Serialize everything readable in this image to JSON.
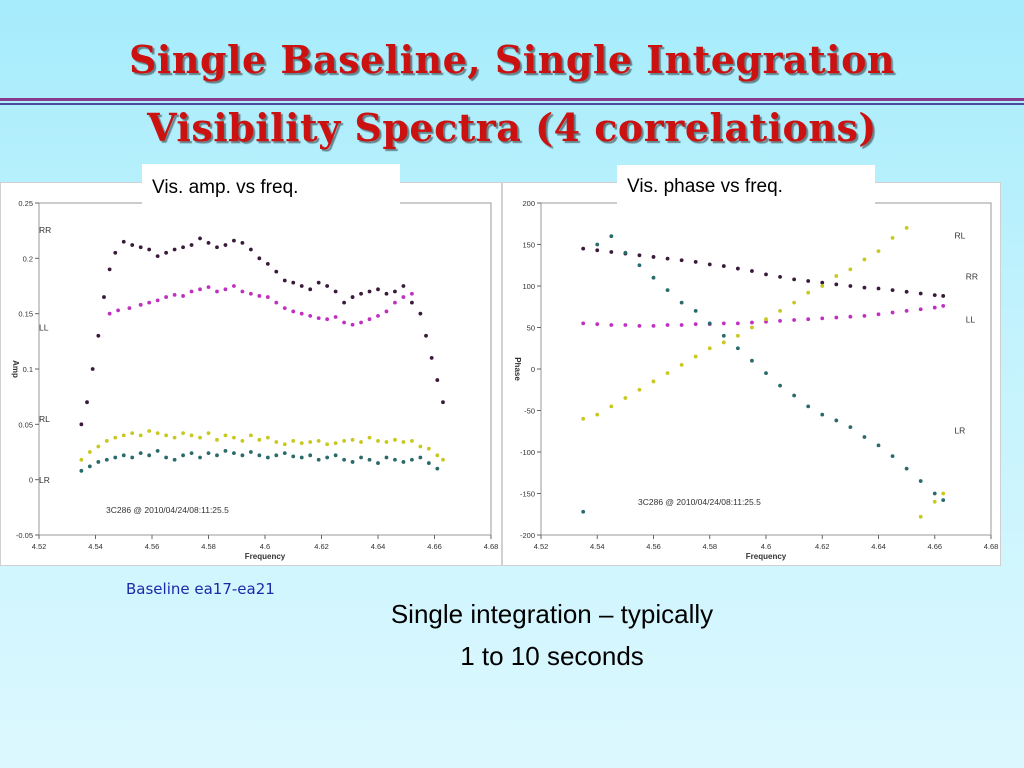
{
  "slide": {
    "title_line1": "Single Baseline, Single Integration",
    "title_line2": "Visibility Spectra (4 correlations)",
    "callout_amp": "Vis. amp. vs freq.",
    "callout_phase": "Vis. phase vs freq.",
    "baseline_label": "Baseline ea17-ea21",
    "note_line1": "Single integration – typically",
    "note_line2": "1 to 10 seconds",
    "colors": {
      "title": "#cc1111",
      "baseline": "#1a2aa8"
    }
  },
  "chart_data": [
    {
      "type": "scatter",
      "xlabel": "Frequency",
      "ylabel": "Amp",
      "xlim": [
        4.52,
        4.68
      ],
      "ylim": [
        -0.05,
        0.25
      ],
      "xticks": [
        "4.52",
        "4.54",
        "4.56",
        "4.58",
        "4.6",
        "4.62",
        "4.64",
        "4.66",
        "4.68"
      ],
      "yticks": [
        "-0.05",
        "0",
        "0.05",
        "0.1",
        "0.15",
        "0.2",
        "0.25"
      ],
      "annotation": "3C286 @ 2010/04/24/08:11:25.5",
      "series": [
        {
          "name": "RR",
          "color": "#3a1a3a",
          "label_at": [
            4.52,
            0.223
          ],
          "x": [
            4.535,
            4.537,
            4.539,
            4.541,
            4.543,
            4.545,
            4.547,
            4.55,
            4.553,
            4.556,
            4.559,
            4.562,
            4.565,
            4.568,
            4.571,
            4.574,
            4.577,
            4.58,
            4.583,
            4.586,
            4.589,
            4.592,
            4.595,
            4.598,
            4.601,
            4.604,
            4.607,
            4.61,
            4.613,
            4.616,
            4.619,
            4.622,
            4.625,
            4.628,
            4.631,
            4.634,
            4.637,
            4.64,
            4.643,
            4.646,
            4.649,
            4.652,
            4.655,
            4.657,
            4.659,
            4.661,
            4.663
          ],
          "y": [
            0.05,
            0.07,
            0.1,
            0.13,
            0.165,
            0.19,
            0.205,
            0.215,
            0.212,
            0.21,
            0.208,
            0.202,
            0.205,
            0.208,
            0.21,
            0.212,
            0.218,
            0.214,
            0.21,
            0.212,
            0.216,
            0.214,
            0.208,
            0.2,
            0.195,
            0.188,
            0.18,
            0.178,
            0.175,
            0.172,
            0.178,
            0.175,
            0.17,
            0.16,
            0.165,
            0.168,
            0.17,
            0.172,
            0.168,
            0.17,
            0.175,
            0.16,
            0.15,
            0.13,
            0.11,
            0.09,
            0.07
          ]
        },
        {
          "name": "LL",
          "color": "#c030c0",
          "label_at": [
            4.52,
            0.135
          ],
          "x": [
            4.545,
            4.548,
            4.552,
            4.556,
            4.559,
            4.562,
            4.565,
            4.568,
            4.571,
            4.574,
            4.577,
            4.58,
            4.583,
            4.586,
            4.589,
            4.592,
            4.595,
            4.598,
            4.601,
            4.604,
            4.607,
            4.61,
            4.613,
            4.616,
            4.619,
            4.622,
            4.625,
            4.628,
            4.631,
            4.634,
            4.637,
            4.64,
            4.643,
            4.646,
            4.649,
            4.652
          ],
          "y": [
            0.15,
            0.153,
            0.155,
            0.158,
            0.16,
            0.162,
            0.165,
            0.167,
            0.166,
            0.17,
            0.172,
            0.174,
            0.17,
            0.172,
            0.175,
            0.17,
            0.168,
            0.166,
            0.165,
            0.16,
            0.155,
            0.152,
            0.15,
            0.148,
            0.146,
            0.145,
            0.147,
            0.142,
            0.14,
            0.142,
            0.145,
            0.148,
            0.152,
            0.16,
            0.165,
            0.168
          ]
        },
        {
          "name": "RL",
          "color": "#c8c820",
          "label_at": [
            4.52,
            0.052
          ],
          "x": [
            4.535,
            4.538,
            4.541,
            4.544,
            4.547,
            4.55,
            4.553,
            4.556,
            4.559,
            4.562,
            4.565,
            4.568,
            4.571,
            4.574,
            4.577,
            4.58,
            4.583,
            4.586,
            4.589,
            4.592,
            4.595,
            4.598,
            4.601,
            4.604,
            4.607,
            4.61,
            4.613,
            4.616,
            4.619,
            4.622,
            4.625,
            4.628,
            4.631,
            4.634,
            4.637,
            4.64,
            4.643,
            4.646,
            4.649,
            4.652,
            4.655,
            4.658,
            4.661,
            4.663
          ],
          "y": [
            0.018,
            0.025,
            0.03,
            0.035,
            0.038,
            0.04,
            0.042,
            0.04,
            0.044,
            0.042,
            0.04,
            0.038,
            0.042,
            0.04,
            0.038,
            0.042,
            0.036,
            0.04,
            0.038,
            0.035,
            0.04,
            0.036,
            0.038,
            0.034,
            0.032,
            0.035,
            0.033,
            0.034,
            0.035,
            0.032,
            0.033,
            0.035,
            0.036,
            0.034,
            0.038,
            0.035,
            0.034,
            0.036,
            0.034,
            0.035,
            0.03,
            0.028,
            0.022,
            0.018
          ]
        },
        {
          "name": "LR",
          "color": "#2a6a6a",
          "label_at": [
            4.52,
            -0.003
          ],
          "x": [
            4.535,
            4.538,
            4.541,
            4.544,
            4.547,
            4.55,
            4.553,
            4.556,
            4.559,
            4.562,
            4.565,
            4.568,
            4.571,
            4.574,
            4.577,
            4.58,
            4.583,
            4.586,
            4.589,
            4.592,
            4.595,
            4.598,
            4.601,
            4.604,
            4.607,
            4.61,
            4.613,
            4.616,
            4.619,
            4.622,
            4.625,
            4.628,
            4.631,
            4.634,
            4.637,
            4.64,
            4.643,
            4.646,
            4.649,
            4.652,
            4.655,
            4.658,
            4.661
          ],
          "y": [
            0.008,
            0.012,
            0.016,
            0.018,
            0.02,
            0.022,
            0.02,
            0.024,
            0.022,
            0.026,
            0.02,
            0.018,
            0.022,
            0.024,
            0.02,
            0.024,
            0.022,
            0.026,
            0.024,
            0.022,
            0.025,
            0.022,
            0.02,
            0.022,
            0.024,
            0.021,
            0.02,
            0.022,
            0.018,
            0.02,
            0.022,
            0.018,
            0.016,
            0.02,
            0.018,
            0.015,
            0.02,
            0.018,
            0.016,
            0.018,
            0.02,
            0.015,
            0.01
          ]
        }
      ]
    },
    {
      "type": "scatter",
      "xlabel": "Frequency",
      "ylabel": "Phase",
      "xlim": [
        4.52,
        4.68
      ],
      "ylim": [
        -200,
        200
      ],
      "xticks": [
        "4.52",
        "4.54",
        "4.56",
        "4.58",
        "4.6",
        "4.62",
        "4.64",
        "4.66",
        "4.68"
      ],
      "yticks": [
        "-200",
        "-150",
        "-100",
        "-50",
        "0",
        "50",
        "100",
        "150",
        "200"
      ],
      "annotation": "3C286 @ 2010/04/24/08:11:25.5",
      "series": [
        {
          "name": "RR",
          "color": "#3a1a3a",
          "label_at": [
            4.671,
            108
          ],
          "x": [
            4.535,
            4.54,
            4.545,
            4.55,
            4.555,
            4.56,
            4.565,
            4.57,
            4.575,
            4.58,
            4.585,
            4.59,
            4.595,
            4.6,
            4.605,
            4.61,
            4.615,
            4.62,
            4.625,
            4.63,
            4.635,
            4.64,
            4.645,
            4.65,
            4.655,
            4.66,
            4.663
          ],
          "y": [
            145,
            143,
            141,
            139,
            137,
            135,
            133,
            131,
            129,
            126,
            124,
            121,
            118,
            114,
            111,
            108,
            106,
            104,
            102,
            100,
            98,
            97,
            95,
            93,
            91,
            89,
            88
          ]
        },
        {
          "name": "LL",
          "color": "#c030c0",
          "label_at": [
            4.671,
            56
          ],
          "x": [
            4.535,
            4.54,
            4.545,
            4.55,
            4.555,
            4.56,
            4.565,
            4.57,
            4.575,
            4.58,
            4.585,
            4.59,
            4.595,
            4.6,
            4.605,
            4.61,
            4.615,
            4.62,
            4.625,
            4.63,
            4.635,
            4.64,
            4.645,
            4.65,
            4.655,
            4.66,
            4.663
          ],
          "y": [
            55,
            54,
            53,
            53,
            52,
            52,
            53,
            53,
            54,
            54,
            55,
            55,
            56,
            57,
            58,
            59,
            60,
            61,
            62,
            63,
            64,
            66,
            68,
            70,
            72,
            74,
            76
          ]
        },
        {
          "name": "RL",
          "color": "#c8c820",
          "label_at": [
            4.667,
            157
          ],
          "x": [
            4.535,
            4.54,
            4.545,
            4.55,
            4.555,
            4.56,
            4.565,
            4.57,
            4.575,
            4.58,
            4.585,
            4.59,
            4.595,
            4.6,
            4.605,
            4.61,
            4.615,
            4.62,
            4.625,
            4.63,
            4.635,
            4.64,
            4.645,
            4.65,
            4.655,
            4.66,
            4.663
          ],
          "y": [
            -60,
            -55,
            -45,
            -35,
            -25,
            -15,
            -5,
            5,
            15,
            25,
            32,
            40,
            50,
            60,
            70,
            80,
            92,
            100,
            112,
            120,
            132,
            142,
            158,
            170,
            -178,
            -160,
            -150
          ]
        },
        {
          "name": "LR",
          "color": "#2a6a6a",
          "label_at": [
            4.667,
            -78
          ],
          "x": [
            4.535,
            4.54,
            4.545,
            4.55,
            4.555,
            4.56,
            4.565,
            4.57,
            4.575,
            4.58,
            4.585,
            4.59,
            4.595,
            4.6,
            4.605,
            4.61,
            4.615,
            4.62,
            4.625,
            4.63,
            4.635,
            4.64,
            4.645,
            4.65,
            4.655,
            4.66,
            4.663
          ],
          "y": [
            -172,
            150,
            160,
            140,
            125,
            110,
            95,
            80,
            70,
            55,
            40,
            25,
            10,
            -5,
            -20,
            -32,
            -45,
            -55,
            -62,
            -70,
            -82,
            -92,
            -105,
            -120,
            -135,
            -150,
            -158
          ]
        }
      ]
    }
  ]
}
